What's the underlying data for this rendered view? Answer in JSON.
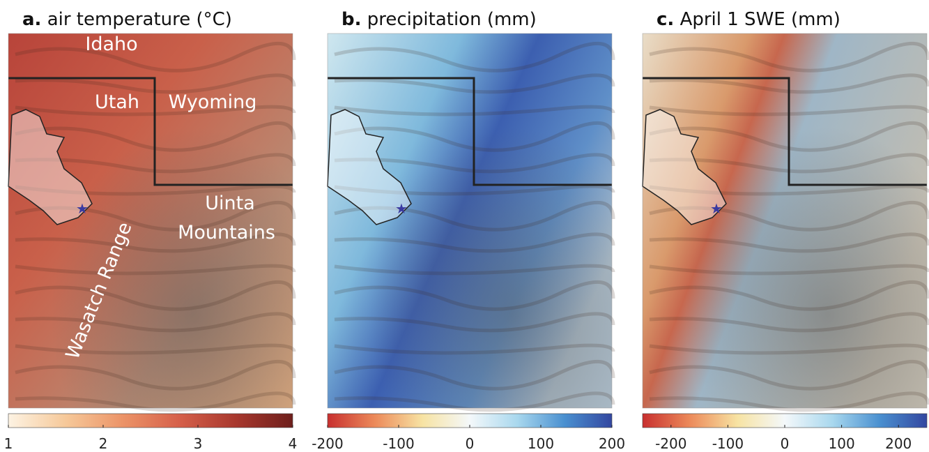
{
  "panels": [
    {
      "letter": "a.",
      "title": "air temperature (°C)",
      "map_labels": [
        "Idaho",
        "Utah",
        "Wyoming",
        "Uinta",
        "Mountains",
        "Wasatch Range"
      ],
      "colorbar": {
        "lim": [
          1,
          4
        ],
        "ticks": [
          1,
          2,
          3,
          4
        ],
        "colors": [
          "#fdf3e3",
          "#f6c99a",
          "#ec9468",
          "#d6604a",
          "#a8382e",
          "#6e1f1c"
        ]
      }
    },
    {
      "letter": "b.",
      "title": "precipitation (mm)",
      "colorbar": {
        "lim": [
          -200,
          200
        ],
        "ticks": [
          -200,
          -100,
          0,
          100,
          200
        ],
        "colors": [
          "#c8302f",
          "#ec8a5a",
          "#f7e3a3",
          "#f4f8fa",
          "#a9d8ee",
          "#4a90d0",
          "#3347a0"
        ]
      }
    },
    {
      "letter": "c.",
      "title": "April 1 SWE (mm)",
      "colorbar": {
        "lim": [
          -250,
          250
        ],
        "ticks": [
          -200,
          -100,
          0,
          100,
          200
        ],
        "colors": [
          "#c8302f",
          "#ec8a5a",
          "#f7e3a3",
          "#f4f8fa",
          "#a9d8ee",
          "#4a90d0",
          "#3347a0"
        ]
      }
    }
  ]
}
